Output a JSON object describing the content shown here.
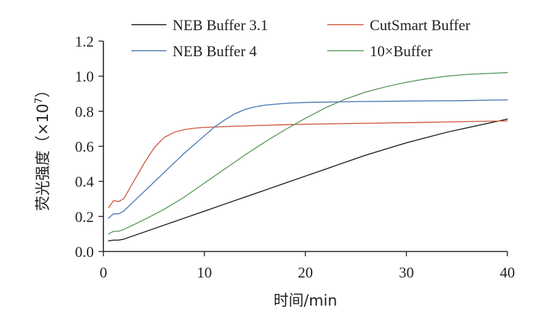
{
  "chart_data": {
    "type": "line",
    "title": "",
    "xlabel": "时间/min",
    "ylabel": "荧光强度（×10⁷）",
    "ylabel_parts": {
      "main": "荧光强度（×10",
      "sup": "7",
      "close": "）"
    },
    "xlim": [
      0,
      40
    ],
    "ylim": [
      0.0,
      1.2
    ],
    "xticks": [
      0,
      10,
      20,
      30,
      40
    ],
    "xtick_labels": [
      "0",
      "10",
      "20",
      "30",
      "40"
    ],
    "yticks": [
      0.0,
      0.2,
      0.4,
      0.6,
      0.8,
      1.0,
      1.2
    ],
    "ytick_labels": [
      "0.0",
      "0.2",
      "0.4",
      "0.6",
      "0.8",
      "1.0",
      "1.2"
    ],
    "grid": false,
    "legend_position": "top",
    "series": [
      {
        "name": "NEB Buffer 3.1",
        "color": "#1a1a1a",
        "x": [
          0.5,
          1,
          1.5,
          2,
          4,
          6,
          8,
          10,
          12,
          14,
          16,
          18,
          20,
          22,
          24,
          26,
          28,
          30,
          32,
          34,
          36,
          38,
          40
        ],
        "y": [
          0.06,
          0.065,
          0.065,
          0.07,
          0.11,
          0.15,
          0.19,
          0.23,
          0.27,
          0.31,
          0.35,
          0.39,
          0.43,
          0.47,
          0.51,
          0.55,
          0.585,
          0.62,
          0.65,
          0.68,
          0.705,
          0.73,
          0.755
        ]
      },
      {
        "name": "CutSmart Buffer",
        "color": "#cc5a3e",
        "x": [
          0.5,
          1,
          1.5,
          2,
          3,
          4,
          5,
          6,
          7,
          8,
          9,
          10,
          12,
          14,
          16,
          18,
          20,
          25,
          30,
          35,
          40
        ],
        "y": [
          0.25,
          0.29,
          0.285,
          0.3,
          0.4,
          0.5,
          0.59,
          0.65,
          0.68,
          0.695,
          0.703,
          0.708,
          0.712,
          0.716,
          0.72,
          0.723,
          0.726,
          0.73,
          0.735,
          0.74,
          0.745
        ]
      },
      {
        "name": "NEB Buffer 4",
        "color": "#4a78b5",
        "x": [
          0.5,
          1,
          1.5,
          2,
          4,
          6,
          8,
          10,
          11,
          12,
          13,
          14,
          15,
          16,
          18,
          20,
          25,
          30,
          35,
          40
        ],
        "y": [
          0.19,
          0.215,
          0.215,
          0.23,
          0.34,
          0.45,
          0.56,
          0.66,
          0.71,
          0.75,
          0.785,
          0.81,
          0.825,
          0.835,
          0.845,
          0.85,
          0.855,
          0.858,
          0.86,
          0.865
        ]
      },
      {
        "name": "10×Buffer",
        "color": "#5a9a58",
        "x": [
          0.5,
          1,
          1.5,
          2,
          4,
          6,
          8,
          10,
          12,
          14,
          16,
          18,
          20,
          22,
          24,
          26,
          28,
          30,
          32,
          34,
          36,
          38,
          40
        ],
        "y": [
          0.1,
          0.115,
          0.115,
          0.125,
          0.18,
          0.24,
          0.31,
          0.39,
          0.47,
          0.55,
          0.625,
          0.695,
          0.76,
          0.82,
          0.87,
          0.91,
          0.94,
          0.965,
          0.985,
          1.0,
          1.01,
          1.015,
          1.02
        ]
      }
    ]
  }
}
